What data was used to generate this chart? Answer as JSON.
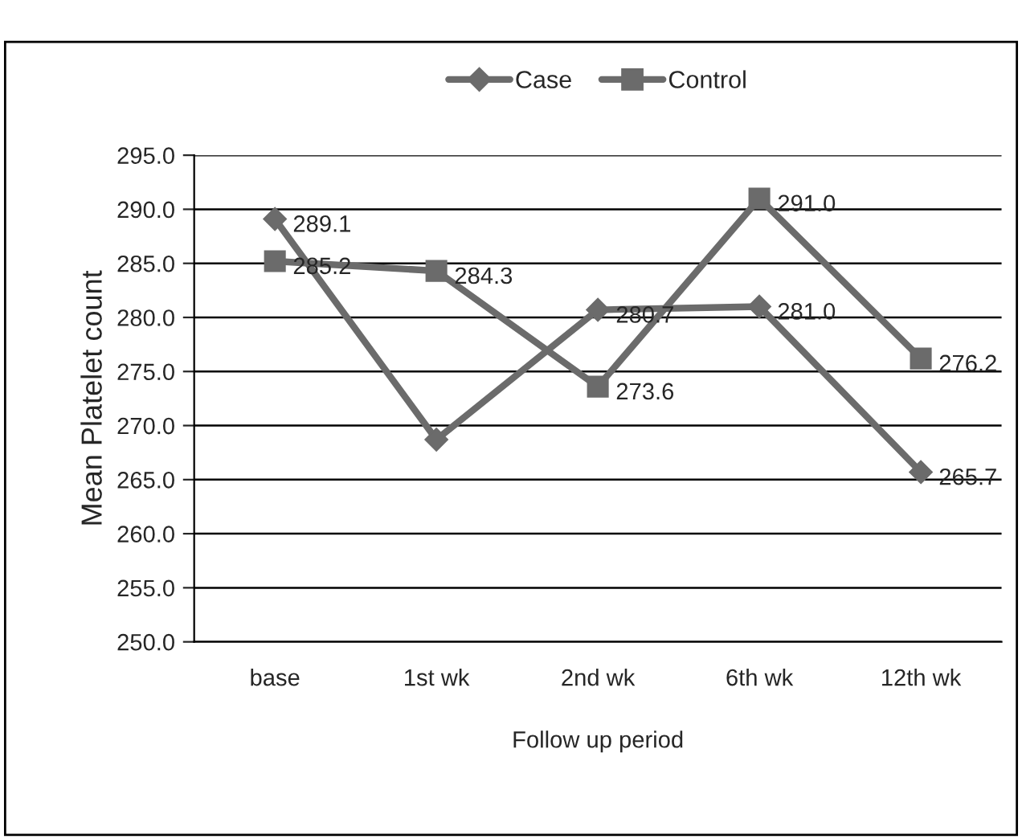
{
  "chart_data": {
    "type": "line",
    "xlabel": "Follow up period",
    "ylabel": "Mean Platelet count",
    "categories": [
      "base",
      "1st wk",
      "2nd wk",
      "6th wk",
      "12th wk"
    ],
    "series": [
      {
        "name": "Case",
        "color": "#6b6b6b",
        "marker": "diamond",
        "values": [
          289.1,
          268.7,
          280.7,
          281.0,
          265.7
        ],
        "value_labels": [
          "289.1",
          null,
          "280.7",
          "281.0",
          "265.7"
        ]
      },
      {
        "name": "Control",
        "color": "#6b6b6b",
        "marker": "square",
        "values": [
          285.2,
          284.3,
          273.6,
          291.0,
          276.2
        ],
        "value_labels": [
          "285.2",
          "284.3",
          "273.6",
          "291.0",
          "276.2"
        ]
      }
    ],
    "ylim": [
      250.0,
      295.0
    ],
    "yticks": [
      {
        "value": 250,
        "label": "250.0"
      },
      {
        "value": 255,
        "label": "255.0"
      },
      {
        "value": 260,
        "label": "260.0"
      },
      {
        "value": 265,
        "label": "265.0"
      },
      {
        "value": 270,
        "label": "270.0"
      },
      {
        "value": 275,
        "label": "275.0"
      },
      {
        "value": 280,
        "label": "280.0"
      },
      {
        "value": 285,
        "label": "285.0"
      },
      {
        "value": 290,
        "label": "290.0"
      },
      {
        "value": 295,
        "label": "295.0"
      }
    ],
    "grid": "y",
    "legend": "top"
  }
}
